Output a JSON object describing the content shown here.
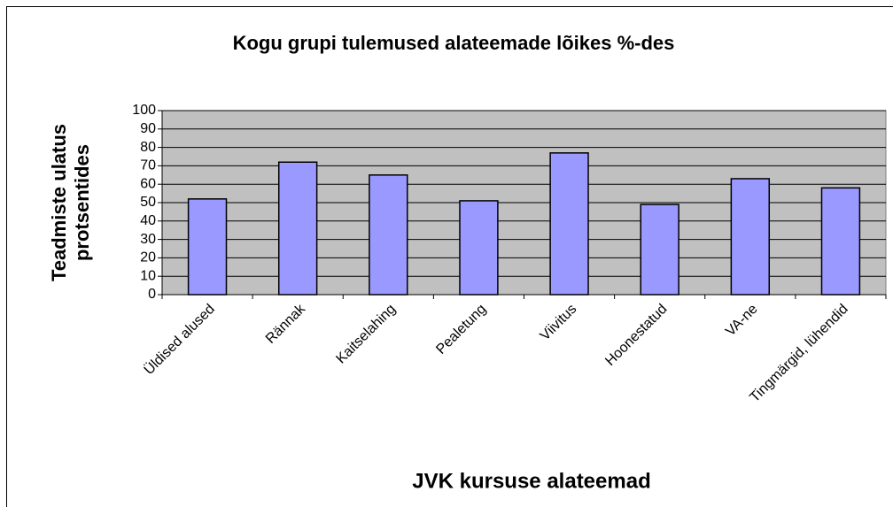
{
  "chart_data": {
    "type": "bar",
    "title": "Kogu grupi tulemused alateemade lõikes %-des",
    "x_label": "JVK kursuse alateemad",
    "y_label": [
      "Teadmiste ulatus",
      "protsentides"
    ],
    "categories": [
      "Üldised alused",
      "Rännak",
      "Kaitselahing",
      "Pealetung",
      "Viivitus",
      "Hoonestatud",
      "VA-ne",
      "Tingmärgid, lühendid"
    ],
    "values": [
      52,
      72,
      65,
      51,
      77,
      49,
      63,
      58
    ],
    "color": "#9999ff",
    "ylim": [
      0,
      100
    ],
    "yticks": [
      0,
      10,
      20,
      30,
      40,
      50,
      60,
      70,
      80,
      90,
      100
    ],
    "grid": true
  }
}
